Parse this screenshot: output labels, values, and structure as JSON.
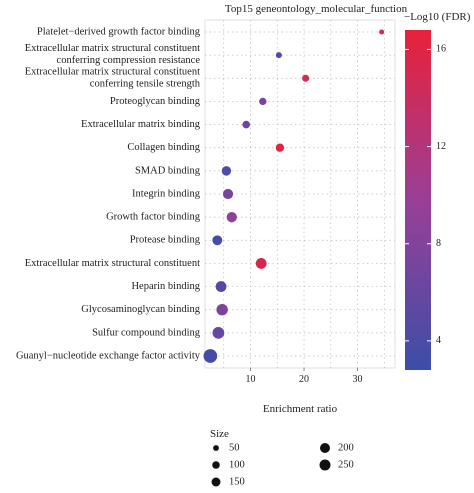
{
  "chart_data": {
    "type": "scatter",
    "title": "Top15 geneontology_molecular_function",
    "xlabel": "Enrichment ratio",
    "ylabel": "",
    "xlim": [
      1.5,
      37
    ],
    "x_ticks": [
      10,
      20,
      30
    ],
    "grid": true,
    "categories": [
      "Platelet−derived growth factor binding",
      "Extracellular matrix structural constituent\nconferring compression resistance",
      "Extracellular matrix structural constituent\nconferring tensile strength",
      "Proteoglycan binding",
      "Extracellular matrix binding",
      "Collagen binding",
      "SMAD binding",
      "Integrin binding",
      "Growth factor binding",
      "Protease binding",
      "Extracellular matrix structural constituent",
      "Heparin binding",
      "Glycosaminoglycan binding",
      "Sulfur compound binding",
      "Guanyl−nucleotide exchange factor activity"
    ],
    "points": [
      {
        "x": 34.5,
        "fdr": 14.0,
        "size": 10
      },
      {
        "x": 15.3,
        "fdr": 4.2,
        "size": 18
      },
      {
        "x": 20.3,
        "fdr": 15.0,
        "size": 30
      },
      {
        "x": 12.3,
        "fdr": 7.2,
        "size": 35
      },
      {
        "x": 9.2,
        "fdr": 6.5,
        "size": 40
      },
      {
        "x": 15.5,
        "fdr": 16.2,
        "size": 50
      },
      {
        "x": 5.5,
        "fdr": 4.3,
        "size": 70
      },
      {
        "x": 5.8,
        "fdr": 7.2,
        "size": 85
      },
      {
        "x": 6.5,
        "fdr": 8.8,
        "size": 90
      },
      {
        "x": 3.8,
        "fdr": 3.6,
        "size": 80
      },
      {
        "x": 12.0,
        "fdr": 15.2,
        "size": 100
      },
      {
        "x": 4.5,
        "fdr": 4.6,
        "size": 100
      },
      {
        "x": 4.7,
        "fdr": 7.6,
        "size": 115
      },
      {
        "x": 4.0,
        "fdr": 6.0,
        "size": 125
      },
      {
        "x": 2.5,
        "fdr": 3.3,
        "size": 180
      }
    ],
    "color_legend": {
      "title": "−Log10 (FDR)",
      "min": 2.8,
      "max": 16.8,
      "ticks": [
        4,
        8,
        12,
        16
      ],
      "colors": [
        "#3c4ea8",
        "#e8213a"
      ]
    },
    "size_legend": {
      "title": "Size",
      "entries": [
        50,
        100,
        150,
        200,
        250
      ]
    }
  }
}
